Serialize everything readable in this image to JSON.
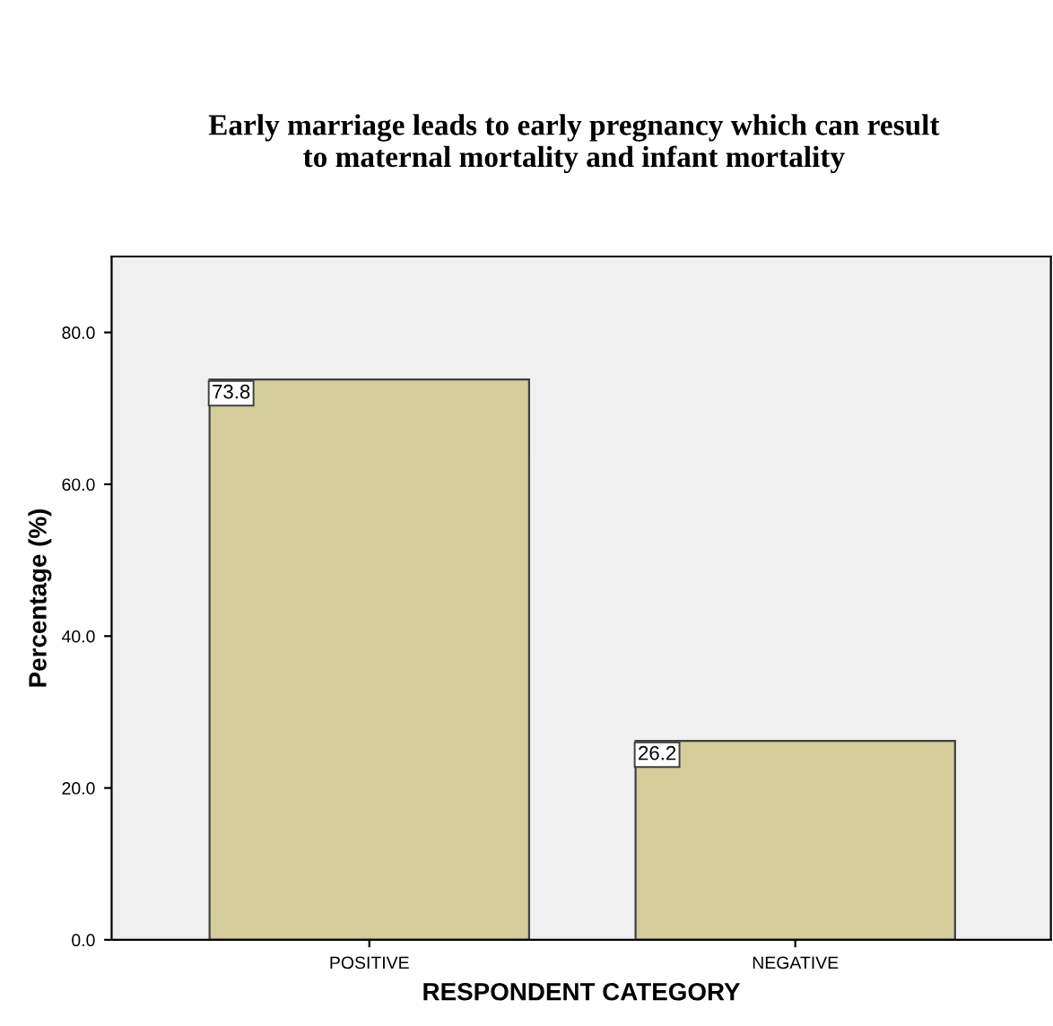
{
  "chart_data": {
    "type": "bar",
    "title": "Early marriage leads to early pregnancy which can result\nto maternal mortality and infant mortality",
    "xlabel": "RESPONDENT CATEGORY",
    "ylabel": "Percentage (%)",
    "categories": [
      "POSITIVE",
      "NEGATIVE"
    ],
    "values": [
      73.8,
      26.2
    ],
    "color": "#d3ce99",
    "ylim": [
      0,
      90
    ],
    "yticks": [
      {
        "value": 0,
        "label": "0.0"
      },
      {
        "value": 20,
        "label": "20.0"
      },
      {
        "value": 40,
        "label": "40.0"
      },
      {
        "value": 60,
        "label": "60.0"
      },
      {
        "value": 80,
        "label": "80.0"
      }
    ],
    "data_labels": true,
    "grid": false,
    "legend": false
  }
}
